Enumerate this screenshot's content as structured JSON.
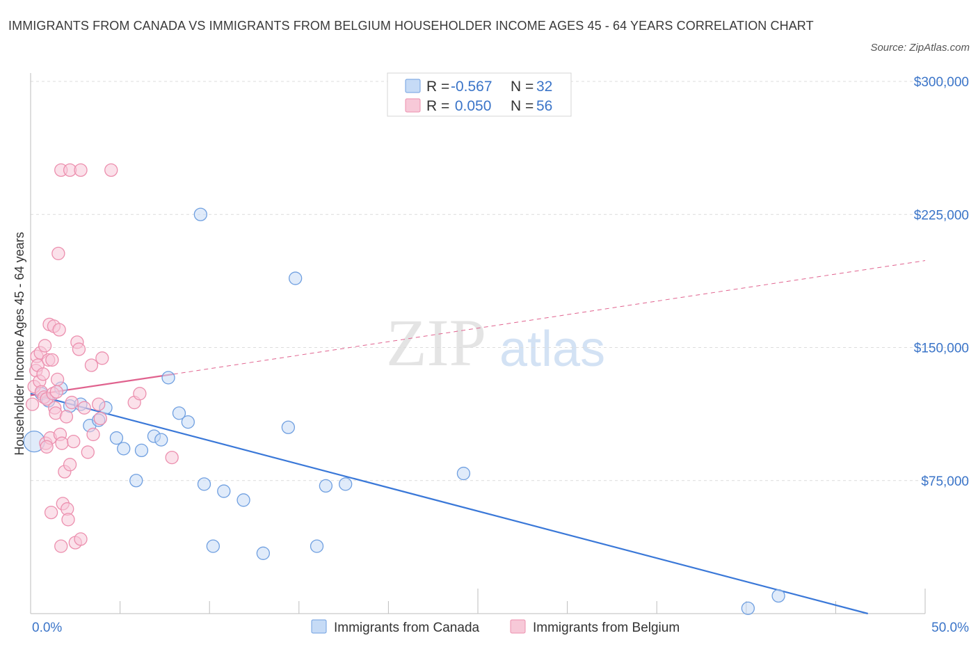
{
  "title": "IMMIGRANTS FROM CANADA VS IMMIGRANTS FROM BELGIUM HOUSEHOLDER INCOME AGES 45 - 64 YEARS CORRELATION CHART",
  "source": "Source: ZipAtlas.com",
  "watermark": {
    "zip": "ZIP",
    "atlas": "atlas"
  },
  "colors": {
    "canada": "#6f9fe0",
    "canada_fill": "#c6dbf6",
    "canada_line": "#3a78d8",
    "belgium": "#ec8fae",
    "belgium_fill": "#f7c9d8",
    "belgium_line": "#e0628e",
    "tick_text": "#3a74c8",
    "grid": "#dcdcdc"
  },
  "legend": {
    "rows": [
      {
        "series": "canada",
        "r_label": "R =",
        "r_value": "-0.567",
        "n_label": "N =",
        "n_value": "32"
      },
      {
        "series": "belgium",
        "r_label": "R =",
        "r_value": " 0.050",
        "n_label": "N =",
        "n_value": "56"
      }
    ]
  },
  "bottom_legend": [
    {
      "series": "canada",
      "label": "Immigrants from Canada"
    },
    {
      "series": "belgium",
      "label": "Immigrants from Belgium"
    }
  ],
  "chart_data": {
    "type": "scatter",
    "title": "IMMIGRANTS FROM CANADA VS IMMIGRANTS FROM BELGIUM HOUSEHOLDER INCOME AGES 45 - 64 YEARS CORRELATION CHART",
    "xlabel": "",
    "ylabel": "Householder Income Ages 45 - 64 years",
    "xlim": [
      0,
      50
    ],
    "ylim": [
      0,
      300000
    ],
    "x_tick_labels": [
      "0.0%",
      "50.0%"
    ],
    "y_ticks": [
      75000,
      150000,
      225000,
      300000
    ],
    "y_tick_labels": [
      "$75,000",
      "$150,000",
      "$225,000",
      "$300,000"
    ],
    "grid": true,
    "series": [
      {
        "name": "Immigrants from Canada",
        "key": "canada",
        "r": -0.567,
        "n": 32,
        "trend": {
          "x0": 0,
          "y0": 124000,
          "x1": 46.8,
          "y1": 0
        },
        "points": [
          [
            0.2,
            97000
          ],
          [
            1.7,
            127000
          ],
          [
            2.2,
            117000
          ],
          [
            2.8,
            118000
          ],
          [
            3.3,
            106000
          ],
          [
            3.8,
            109000
          ],
          [
            4.2,
            116000
          ],
          [
            4.8,
            99000
          ],
          [
            5.2,
            93000
          ],
          [
            5.9,
            75000
          ],
          [
            6.2,
            92000
          ],
          [
            6.9,
            100000
          ],
          [
            7.3,
            98000
          ],
          [
            7.7,
            133000
          ],
          [
            8.3,
            113000
          ],
          [
            8.8,
            108000
          ],
          [
            9.5,
            225000
          ],
          [
            9.7,
            73000
          ],
          [
            10.2,
            38000
          ],
          [
            10.8,
            69000
          ],
          [
            11.9,
            64000
          ],
          [
            13.0,
            34000
          ],
          [
            14.4,
            105000
          ],
          [
            14.8,
            189000
          ],
          [
            16.0,
            38000
          ],
          [
            16.5,
            72000
          ],
          [
            17.6,
            73000
          ],
          [
            24.2,
            79000
          ],
          [
            40.1,
            3000
          ],
          [
            41.8,
            10000
          ],
          [
            0.6,
            124000
          ],
          [
            1.0,
            120000
          ]
        ]
      },
      {
        "name": "Immigrants from Belgium",
        "key": "belgium",
        "r": 0.05,
        "n": 56,
        "trend_solid": {
          "x0": 0,
          "y0": 123000,
          "x1": 8.0,
          "y1": 135000
        },
        "trend_dashed": {
          "x0": 8.0,
          "y0": 135000,
          "x1": 50,
          "y1": 199000
        },
        "points": [
          [
            0.1,
            118000
          ],
          [
            0.2,
            128000
          ],
          [
            0.3,
            137000
          ],
          [
            0.35,
            145000
          ],
          [
            0.4,
            140000
          ],
          [
            0.5,
            131000
          ],
          [
            0.55,
            147000
          ],
          [
            0.6,
            125000
          ],
          [
            0.7,
            135000
          ],
          [
            0.75,
            122000
          ],
          [
            0.8,
            151000
          ],
          [
            0.85,
            96000
          ],
          [
            0.9,
            121000
          ],
          [
            1.0,
            143000
          ],
          [
            1.05,
            163000
          ],
          [
            1.1,
            99000
          ],
          [
            1.15,
            57000
          ],
          [
            1.2,
            143000
          ],
          [
            1.25,
            124000
          ],
          [
            1.3,
            162000
          ],
          [
            1.35,
            116000
          ],
          [
            1.4,
            113000
          ],
          [
            1.45,
            125000
          ],
          [
            1.5,
            132000
          ],
          [
            1.55,
            203000
          ],
          [
            1.6,
            160000
          ],
          [
            1.65,
            101000
          ],
          [
            1.7,
            38000
          ],
          [
            1.75,
            96000
          ],
          [
            1.8,
            62000
          ],
          [
            1.9,
            80000
          ],
          [
            2.0,
            111000
          ],
          [
            2.05,
            59000
          ],
          [
            2.1,
            53000
          ],
          [
            2.2,
            84000
          ],
          [
            2.3,
            119000
          ],
          [
            2.5,
            40000
          ],
          [
            2.6,
            153000
          ],
          [
            2.7,
            149000
          ],
          [
            2.8,
            42000
          ],
          [
            3.0,
            116000
          ],
          [
            3.2,
            91000
          ],
          [
            3.4,
            140000
          ],
          [
            3.5,
            101000
          ],
          [
            3.8,
            118000
          ],
          [
            1.7,
            250000
          ],
          [
            2.2,
            250000
          ],
          [
            2.8,
            250000
          ],
          [
            4.5,
            250000
          ],
          [
            4.0,
            144000
          ],
          [
            5.8,
            119000
          ],
          [
            6.1,
            124000
          ],
          [
            7.9,
            88000
          ],
          [
            2.4,
            97000
          ],
          [
            0.9,
            94000
          ],
          [
            3.9,
            110000
          ]
        ]
      }
    ]
  }
}
